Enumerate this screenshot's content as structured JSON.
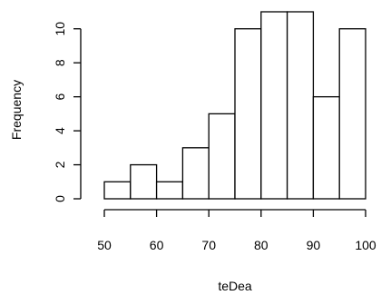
{
  "chart_data": {
    "type": "bar",
    "subtype": "histogram",
    "title": "",
    "xlabel": "teDea",
    "ylabel": "Frequency",
    "bins": [
      {
        "start": 50,
        "end": 55,
        "count": 1
      },
      {
        "start": 55,
        "end": 60,
        "count": 2
      },
      {
        "start": 60,
        "end": 65,
        "count": 1
      },
      {
        "start": 65,
        "end": 70,
        "count": 3
      },
      {
        "start": 70,
        "end": 75,
        "count": 5
      },
      {
        "start": 75,
        "end": 80,
        "count": 10
      },
      {
        "start": 80,
        "end": 85,
        "count": 11
      },
      {
        "start": 85,
        "end": 90,
        "count": 11
      },
      {
        "start": 90,
        "end": 95,
        "count": 6
      },
      {
        "start": 95,
        "end": 100,
        "count": 10
      }
    ],
    "xlim": [
      50,
      100
    ],
    "ylim": [
      0,
      11
    ],
    "xticks": [
      50,
      60,
      70,
      80,
      90,
      100
    ],
    "yticks": [
      0,
      2,
      4,
      6,
      8,
      10
    ],
    "bar_fill": "#ffffff",
    "bar_stroke": "#000000",
    "grid": false,
    "legend": "none"
  }
}
